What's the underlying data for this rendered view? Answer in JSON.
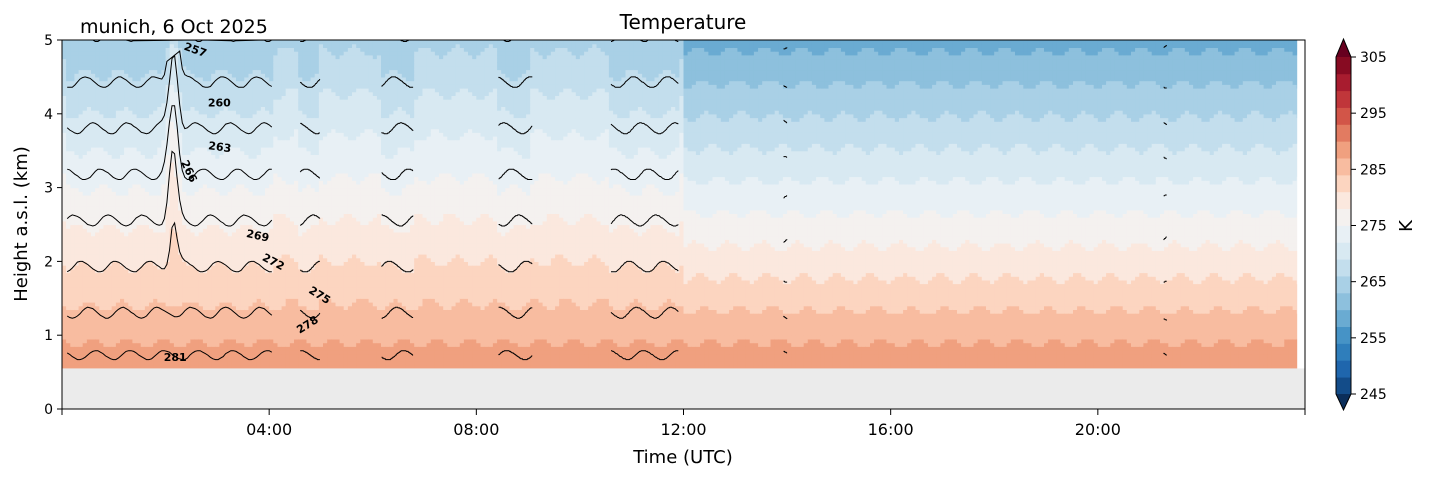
{
  "header": {
    "location_date": "munich, 6 Oct 2025"
  },
  "chart_data": {
    "type": "heatmap",
    "title": "Temperature",
    "xlabel": "Time (UTC)",
    "ylabel": "Height a.s.l. (km)",
    "xlim_hours": [
      0,
      24
    ],
    "ylim_km": [
      0,
      5
    ],
    "x_ticks": [
      {
        "hour": 4,
        "label": "04:00"
      },
      {
        "hour": 8,
        "label": "08:00"
      },
      {
        "hour": 12,
        "label": "12:00"
      },
      {
        "hour": 16,
        "label": "16:00"
      },
      {
        "hour": 20,
        "label": "20:00"
      }
    ],
    "y_ticks": [
      {
        "value": 0,
        "label": "0"
      },
      {
        "value": 1,
        "label": "1"
      },
      {
        "value": 2,
        "label": "2"
      },
      {
        "value": 3,
        "label": "3"
      },
      {
        "value": 4,
        "label": "4"
      },
      {
        "value": 5,
        "label": "5"
      }
    ],
    "surface_height_km": 0.55,
    "data_end_hour": 23.85,
    "colorbar": {
      "label": "K",
      "range": [
        245,
        305
      ],
      "step": 2.5,
      "ticks": [
        "245",
        "255",
        "265",
        "275",
        "285",
        "295",
        "305"
      ],
      "extend": "both",
      "cmap": "RdBu_r",
      "colors": [
        "#0b2e5a",
        "#134c89",
        "#1f66ad",
        "#2f7ebb",
        "#4693c6",
        "#6aabd2",
        "#8dc0dd",
        "#a9d0e6",
        "#c3deed",
        "#d8e9f2",
        "#e8f0f5",
        "#f4f1ef",
        "#fbe8de",
        "#fcd5c0",
        "#f8bca0",
        "#f0a07f",
        "#e27b61",
        "#d25548",
        "#c0363a",
        "#a81c2f",
        "#870b22",
        "#67001f"
      ]
    },
    "contour_levels_K": [
      257,
      260,
      263,
      266,
      269,
      272,
      275,
      278,
      281
    ],
    "contour_labels": [
      "257",
      "260",
      "263",
      "266",
      "269",
      "272",
      "275",
      "278",
      "281"
    ],
    "observation_periods_h": [
      [
        0.1,
        4.05
      ],
      [
        4.6,
        4.98
      ],
      [
        6.17,
        6.78
      ],
      [
        8.43,
        9.08
      ],
      [
        10.6,
        11.9
      ],
      [
        13.93,
        14.0
      ],
      [
        21.27,
        21.33
      ]
    ],
    "profile_model": {
      "surface_temperature_K": 282,
      "lapse_rate_K_per_km": -5.7,
      "peak_hour": 2.15,
      "peak_amplitude_K": 5
    }
  }
}
